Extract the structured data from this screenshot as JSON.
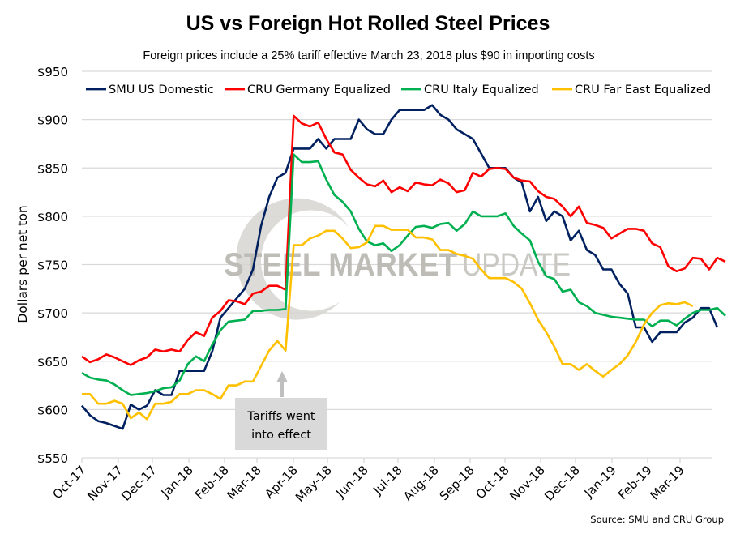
{
  "chart_data": {
    "type": "line",
    "title": "US vs Foreign Hot Rolled Steel Prices",
    "subtitle": "Foreign prices include a 25% tariff effective March 23, 2018 plus $90 in importing costs",
    "xlabel": "",
    "ylabel": "Dollars per net ton",
    "ylim": [
      550,
      950
    ],
    "yticks": [
      550,
      600,
      650,
      700,
      750,
      800,
      850,
      900,
      950
    ],
    "ytick_labels": [
      "$550",
      "$600",
      "$650",
      "$700",
      "$750",
      "$800",
      "$850",
      "$900",
      "$950"
    ],
    "x_tick_labels": [
      "Oct-17",
      "Nov-17",
      "Dec-17",
      "Jan-18",
      "Feb-18",
      "Mar-18",
      "Apr-18",
      "May-18",
      "Jun-18",
      "Jul-18",
      "Aug-18",
      "Sep-18",
      "Oct-18",
      "Nov-18",
      "Dec-18",
      "Jan-19",
      "Feb-19",
      "Mar-19"
    ],
    "x_frequency": "weekly",
    "grid": "horizontal",
    "legend_position": "top",
    "series": [
      {
        "name": "SMU US Domestic",
        "color": "#002060",
        "values": [
          604,
          594,
          588,
          586,
          583,
          580,
          605,
          600,
          604,
          620,
          615,
          615,
          640,
          640,
          640,
          640,
          660,
          695,
          705,
          715,
          725,
          745,
          790,
          820,
          840,
          845,
          870,
          870,
          870,
          880,
          870,
          880,
          880,
          880,
          900,
          890,
          885,
          885,
          900,
          910,
          910,
          910,
          910,
          915,
          905,
          900,
          890,
          885,
          880,
          865,
          850,
          850,
          850,
          840,
          835,
          805,
          820,
          795,
          805,
          800,
          775,
          785,
          765,
          760,
          745,
          745,
          730,
          720,
          685,
          685,
          670,
          680,
          680,
          680,
          690,
          695,
          705,
          705,
          685
        ]
      },
      {
        "name": "CRU Germany Equalized",
        "color": "#ff0000",
        "values": [
          655,
          649,
          652,
          657,
          654,
          650,
          646,
          651,
          654,
          662,
          660,
          662,
          660,
          672,
          680,
          676,
          695,
          702,
          713,
          712,
          709,
          720,
          722,
          728,
          728,
          724,
          904,
          896,
          893,
          897,
          880,
          866,
          864,
          848,
          840,
          833,
          831,
          837,
          825,
          830,
          826,
          835,
          833,
          832,
          838,
          834,
          825,
          827,
          845,
          841,
          849,
          850,
          849,
          840,
          837,
          836,
          826,
          820,
          818,
          810,
          800,
          810,
          793,
          791,
          788,
          777,
          782,
          787,
          787,
          785,
          772,
          768,
          748,
          743,
          746,
          757,
          756,
          745,
          757,
          753
        ]
      },
      {
        "name": "CRU Italy Equalized",
        "color": "#00b050",
        "values": [
          638,
          633,
          631,
          630,
          626,
          620,
          615,
          616,
          617,
          619,
          622,
          623,
          630,
          647,
          655,
          650,
          667,
          682,
          691,
          692,
          693,
          702,
          702,
          703,
          703,
          704,
          864,
          856,
          856,
          857,
          838,
          822,
          815,
          805,
          787,
          774,
          770,
          772,
          764,
          770,
          780,
          789,
          790,
          788,
          792,
          793,
          785,
          792,
          805,
          800,
          800,
          800,
          803,
          790,
          782,
          775,
          753,
          738,
          735,
          722,
          724,
          711,
          707,
          700,
          698,
          696,
          695,
          694,
          693,
          693,
          686,
          692,
          692,
          687,
          694,
          700,
          703,
          703,
          705,
          697
        ]
      },
      {
        "name": "CRU Far East Equalized",
        "color": "#ffc000",
        "values": [
          616,
          616,
          606,
          606,
          609,
          606,
          591,
          597,
          590,
          606,
          606,
          608,
          616,
          616,
          620,
          620,
          616,
          611,
          625,
          625,
          629,
          629,
          645,
          661,
          671,
          661,
          770,
          770,
          777,
          780,
          785,
          785,
          777,
          767,
          768,
          773,
          790,
          790,
          786,
          786,
          786,
          778,
          778,
          776,
          765,
          765,
          761,
          759,
          756,
          745,
          736,
          736,
          736,
          732,
          725,
          710,
          693,
          680,
          665,
          647,
          647,
          641,
          647,
          640,
          634,
          641,
          647,
          656,
          670,
          688,
          700,
          708,
          710,
          709,
          711,
          707
        ]
      }
    ],
    "annotations": [
      {
        "text_line1": "Tariffs went",
        "text_line2": "into effect",
        "points_to": "Mar-23-2018"
      }
    ],
    "watermark": {
      "bold": "STEEL MARKET",
      "light": "UPDATE"
    },
    "source": "Source: SMU and CRU Group"
  }
}
